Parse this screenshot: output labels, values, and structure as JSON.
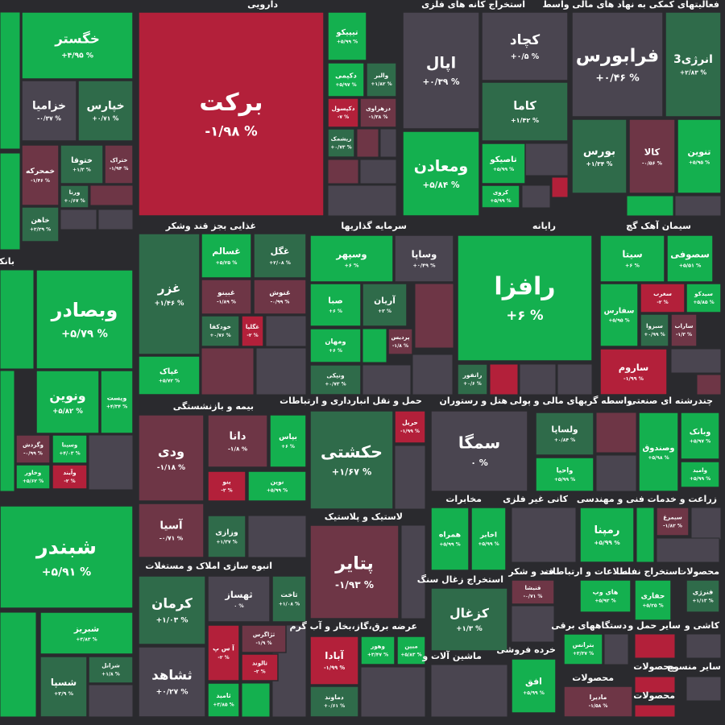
{
  "chart_data": {
    "type": "treemap",
    "sectors": [
      {
        "tiles": [
          {
            "name": "خگستر",
            "value": 4.95,
            "value_label": "+۴/۹۵ %"
          },
          {
            "name": "خزامیا",
            "value": -0.37,
            "value_label": "-۰/۳۷ %"
          },
          {
            "name": "خپارس",
            "value": 0.71,
            "value_label": "+۰/۷۱ %"
          },
          {
            "name": "خمحرکه",
            "value": -1.46,
            "value_label": "-۱/۴۶ %"
          },
          {
            "name": "ختوقا",
            "value": 1.3,
            "value_label": "+۱/۳ %"
          },
          {
            "name": "ختراک",
            "value": -1.94,
            "value_label": "-۱/۹۴ %"
          },
          {
            "name": "ورنا",
            "value": 0.67,
            "value_label": "+۰/۶۷ %"
          },
          {
            "name": "خاهن",
            "value": 2.29,
            "value_label": "+۲/۲۹ %"
          }
        ]
      },
      {
        "name": "بانکها",
        "tiles": [
          {
            "name": "وبصادر",
            "value": 5.79,
            "value_label": "+۵/۷۹ %"
          },
          {
            "name": "ونوین",
            "value": 5.82,
            "value_label": "+۵/۸۲ %"
          },
          {
            "name": "ویست",
            "value": 4.34,
            "value_label": "+۴/۳۴ %"
          },
          {
            "name": "وگردش",
            "value": -0.99,
            "value_label": "-۰/۹۹ %"
          },
          {
            "name": "وسینا",
            "value": 4.03,
            "value_label": "+۴/۰۳ %"
          },
          {
            "name": "وخاور",
            "value": 5.62,
            "value_label": "+۵/۶۲ %"
          },
          {
            "name": "وآیند",
            "value": -2,
            "value_label": "-۲ %"
          }
        ]
      },
      {
        "tiles": [
          {
            "name": "شبندر",
            "value": 5.91,
            "value_label": "+۵/۹۱ %"
          },
          {
            "name": "شبریز",
            "value": 3.83,
            "value_label": "+۳/۸۳ %"
          },
          {
            "name": "شسپا",
            "value": 2.9,
            "value_label": "+۲/۹ %"
          },
          {
            "name": "شرانل",
            "value": 1.8,
            "value_label": "+۱/۸ %"
          }
        ]
      },
      {
        "name": "دارویی",
        "tiles": [
          {
            "name": "برکت",
            "value": -1.98,
            "value_label": "-۱/۹۸ %"
          },
          {
            "name": "تیپیکو",
            "value": 5.99,
            "value_label": "+۵/۹۹ %"
          },
          {
            "name": "دکیمی",
            "value": 5.97,
            "value_label": "+۵/۹۷ %"
          },
          {
            "name": "والبر",
            "value": 1.82,
            "value_label": "+۱/۸۲ %"
          },
          {
            "name": "دکپسول",
            "value": -7,
            "value_label": "-۷ %"
          },
          {
            "name": "دزهراوی",
            "value": -1.38,
            "value_label": "-۱/۳۸ %"
          },
          {
            "name": "ریشمک",
            "value": 0.73,
            "value_label": "+۰/۷۳ %"
          }
        ]
      },
      {
        "name": "استخراج کانه های فلزی",
        "tiles": [
          {
            "name": "اپال",
            "value": 0.39,
            "value_label": "+۰/۳۹ %"
          },
          {
            "name": "کچاد",
            "value": 0.5,
            "value_label": "+۰/۵ %"
          },
          {
            "name": "کاما",
            "value": 1.42,
            "value_label": "+۱/۴۲ %"
          },
          {
            "name": "ومعادن",
            "value": 5.84,
            "value_label": "+۵/۸۴ %"
          },
          {
            "name": "تاصیکو",
            "value": 5.99,
            "value_label": "+۵/۹۹ %"
          },
          {
            "name": "کروی",
            "value": 5.99,
            "value_label": "+۵/۹۹ %"
          }
        ]
      },
      {
        "name": "فعالیتهای کمکی به نهاد های مالی واسط",
        "tiles": [
          {
            "name": "فرابورس",
            "value": 0.46,
            "value_label": "+۰/۴۶ %"
          },
          {
            "name": "انرژی3",
            "value": 2.83,
            "value_label": "+۲/۸۳ %"
          },
          {
            "name": "بورس",
            "value": 1.34,
            "value_label": "+۱/۳۴ %"
          },
          {
            "name": "کالا",
            "value": -0.56,
            "value_label": "-۰/۵۶ %"
          },
          {
            "name": "تنوین",
            "value": 5.95,
            "value_label": "+۵/۹۵ %"
          }
        ]
      },
      {
        "name": "غذایی بجز قند وشکر",
        "tiles": [
          {
            "name": "غزر",
            "value": 1.46,
            "value_label": "+۱/۴۶ %"
          },
          {
            "name": "غسالم",
            "value": 5.25,
            "value_label": "+۵/۲۵ %"
          },
          {
            "name": "غگل",
            "value": 2.08,
            "value_label": "+۲/۰۸ %"
          },
          {
            "name": "غبینو",
            "value": -1.89,
            "value_label": "-۱/۸۹ %"
          },
          {
            "name": "غنوش",
            "value": -0.99,
            "value_label": "-۰/۹۹ %"
          },
          {
            "name": "خودکفا",
            "value": 0.76,
            "value_label": "+۰/۷۶ %"
          },
          {
            "name": "غگلپا",
            "value": -2,
            "value_label": "-۲ %"
          },
          {
            "name": "غپاک",
            "value": 5.72,
            "value_label": "+۵/۷۲ %"
          }
        ]
      },
      {
        "name": "سرمایه گذاریها",
        "tiles": [
          {
            "name": "وسپهر",
            "value": 6,
            "value_label": "+۶ %"
          },
          {
            "name": "وساپا",
            "value": 0.49,
            "value_label": "+۰/۴۹ %"
          },
          {
            "name": "صبا",
            "value": 6,
            "value_label": "+۶ %"
          },
          {
            "name": "آریان",
            "value": 3,
            "value_label": "+۳ %"
          },
          {
            "name": "ومهان",
            "value": 6,
            "value_label": "+۶ %"
          },
          {
            "name": "پردیس",
            "value": -1.8,
            "value_label": "-۱/۸ %"
          },
          {
            "name": "ونیکی",
            "value": 0.73,
            "value_label": "+۰/۷۳ %"
          }
        ]
      },
      {
        "name": "رایانه",
        "tiles": [
          {
            "name": "رافزا",
            "value": 6,
            "value_label": "+۶ %"
          },
          {
            "name": "رانفور",
            "value": 0.6,
            "value_label": "+۰/۶ %"
          }
        ]
      },
      {
        "name": "سیمان آهک گچ",
        "tiles": [
          {
            "name": "سیتا",
            "value": 6,
            "value_label": "+۶ %"
          },
          {
            "name": "سصوفی",
            "value": 5.51,
            "value_label": "+۵/۵۱ %"
          },
          {
            "name": "سفارس",
            "value": 5.95,
            "value_label": "+۵/۹۵ %"
          },
          {
            "name": "سغرب",
            "value": -2,
            "value_label": "-۲ %"
          },
          {
            "name": "سیدکو",
            "value": 5.85,
            "value_label": "+۵/۸۵ %"
          },
          {
            "name": "سبزوا",
            "value": 0.99,
            "value_label": "+۰/۹۹ %"
          },
          {
            "name": "ساراب",
            "value": -1.3,
            "value_label": "-۱/۳ %"
          },
          {
            "name": "ساروم",
            "value": -1.99,
            "value_label": "-۱/۹۹ %"
          }
        ]
      },
      {
        "name": "بیمه و بازنشستگی",
        "tiles": [
          {
            "name": "ودی",
            "value": -1.18,
            "value_label": "-۱/۱۸ %"
          },
          {
            "name": "دانا",
            "value": -1.8,
            "value_label": "-۱/۸ %"
          },
          {
            "name": "بپاس",
            "value": 6,
            "value_label": "+۶ %"
          },
          {
            "name": "بنو",
            "value": -2,
            "value_label": "-۲ %"
          },
          {
            "name": "نوین",
            "value": 5.99,
            "value_label": "+۵/۹۹ %"
          },
          {
            "name": "آسیا",
            "value": -0.71,
            "value_label": "-۰/۷۱ %"
          },
          {
            "name": "وزازی",
            "value": 1.37,
            "value_label": "+۱/۳۷ %"
          }
        ]
      },
      {
        "name": "حمل و نقل انبارداری و ارتباطات",
        "tiles": [
          {
            "name": "حکشتی",
            "value": 1.67,
            "value_label": "+۱/۶۷ %"
          },
          {
            "name": "حریل",
            "value": -1.99,
            "value_label": "-۱/۹۹ %"
          }
        ]
      },
      {
        "name": "هتل و رستوران",
        "tiles": [
          {
            "name": "سمگا",
            "value": 0,
            "value_label": "۰ %"
          }
        ]
      },
      {
        "name": "واسطه گریهای مالی و پولی",
        "tiles": [
          {
            "name": "ولساپا",
            "value": 0.84,
            "value_label": "+۰/۸۴ %"
          },
          {
            "name": "واحیا",
            "value": 5.99,
            "value_label": "+۵/۹۹ %"
          }
        ]
      },
      {
        "name": "چندرشته ای صنعتی",
        "tiles": [
          {
            "name": "وصندوق",
            "value": 5.98,
            "value_label": "+۵/۹۸ %"
          },
          {
            "name": "وبانک",
            "value": 5.97,
            "value_label": "+۵/۹۷ %"
          },
          {
            "name": "وامید",
            "value": 5.99,
            "value_label": "+۵/۹۹ %"
          }
        ]
      },
      {
        "name": "انبوه سازی املاک و مستغلات",
        "tiles": [
          {
            "name": "کرمان",
            "value": 1.03,
            "value_label": "+۱/۰۳ %"
          },
          {
            "name": "ثهساز",
            "value": 0,
            "value_label": "۰ %"
          },
          {
            "name": "ثاخت",
            "value": 1.08,
            "value_label": "+۱/۰۸ %"
          },
          {
            "name": "آ س پ",
            "value": -2,
            "value_label": "-۲ %"
          },
          {
            "name": "ثژاگرس",
            "value": -1.9,
            "value_label": "-۱/۹ %"
          },
          {
            "name": "ثالوند",
            "value": -2,
            "value_label": "-۲ %"
          },
          {
            "name": "ثشاهد",
            "value": 0.27,
            "value_label": "+۰/۲۷ %"
          },
          {
            "name": "ثامید",
            "value": 3.85,
            "value_label": "+۳/۸۵ %"
          }
        ]
      },
      {
        "name": "لاستیک و پلاستیک",
        "tiles": [
          {
            "name": "پتایر",
            "value": -1.93,
            "value_label": "-۱/۹۳ %"
          }
        ]
      },
      {
        "name": "عرضه برق،گاز،بخار و آب گرم",
        "tiles": [
          {
            "name": "آبادا",
            "value": -1.99,
            "value_label": "-۱/۹۹ %"
          },
          {
            "name": "وهور",
            "value": 3.47,
            "value_label": "+۳/۴۷ %"
          },
          {
            "name": "مبین",
            "value": 5.83,
            "value_label": "+۵/۸۳ %"
          },
          {
            "name": "دماوند",
            "value": 0.61,
            "value_label": "+۰/۶۱ %"
          }
        ]
      },
      {
        "name": "مخابرات",
        "tiles": [
          {
            "name": "همراه",
            "value": 5.99,
            "value_label": "+۵/۹۹ %"
          },
          {
            "name": "اخابر",
            "value": 5.99,
            "value_label": "+۵/۹۹ %"
          }
        ]
      },
      {
        "name": "استخراج زغال سنگ",
        "tiles": [
          {
            "name": "کزغال",
            "value": 1.3,
            "value_label": "+۱/۳ %"
          }
        ]
      },
      {
        "name": "ماشین آلات و"
      },
      {
        "name": "کانی غیر فلزی"
      },
      {
        "name": "فنی و مهندسی",
        "tiles": [
          {
            "name": "رمپنا",
            "value": 5.99,
            "value_label": "+۵/۹۹ %"
          }
        ]
      },
      {
        "name": "زراعت و خدمات",
        "tiles": [
          {
            "name": "سیمرغ",
            "value": -1.82,
            "value_label": "-۱/۸۲ %"
          }
        ]
      },
      {
        "name": "قند و شکر",
        "tiles": [
          {
            "name": "قنیشا",
            "value": -0.71,
            "value_label": "-۰/۷۱ %"
          }
        ]
      },
      {
        "name": "اطلاعات و ارتباطات",
        "tiles": [
          {
            "name": "های وب",
            "value": 5.92,
            "value_label": "+۵/۹۲ %"
          }
        ]
      },
      {
        "name": "استخراج نفت",
        "tiles": [
          {
            "name": "حفاری",
            "value": 5.25,
            "value_label": "+۵/۲۵ %"
          }
        ]
      },
      {
        "name": "محصولات",
        "tiles": [
          {
            "name": "فنرژی",
            "value": 1.13,
            "value_label": "+۱/۱۳ %"
          }
        ]
      },
      {
        "name": "خرده فروشی",
        "tiles": [
          {
            "name": "افق",
            "value": 5.99,
            "value_label": "+۵/۹۹ %"
          }
        ]
      },
      {
        "name": "دستگاههای برقی",
        "tiles": [
          {
            "name": "بترانس",
            "value": 3.37,
            "value_label": "+۳/۳۷ %"
          }
        ]
      },
      {
        "name": "سایر حمل و"
      },
      {
        "name": "کاشی و"
      },
      {
        "name": "محصولات",
        "tiles": [
          {
            "name": "مادیرا",
            "value": -1.58,
            "value_label": "-۱/۵۸ %"
          }
        ]
      },
      {
        "name": "محصولات"
      },
      {
        "name": "سایر منسوج"
      },
      {
        "name": "محصولات"
      }
    ]
  }
}
